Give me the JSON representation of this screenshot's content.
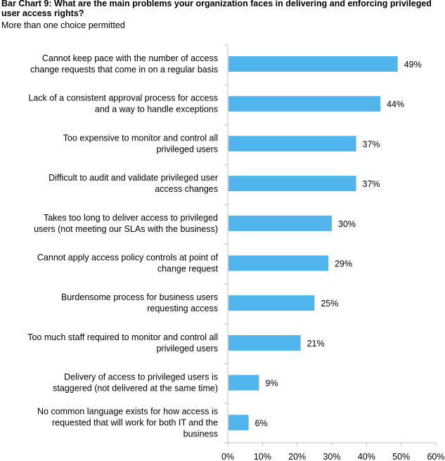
{
  "title": "Bar Chart 9: What are the main problems your organization faces in delivering and enforcing privileged user access rights?",
  "subtitle": "More than one choice permitted",
  "chart_data": {
    "type": "bar",
    "orientation": "horizontal",
    "title": "Bar Chart 9: What are the main problems your organization faces in delivering and enforcing privileged user access rights?",
    "subtitle": "More than one choice permitted",
    "categories": [
      [
        "Cannot keep pace with the number of access",
        "change requests that come in on a regular basis"
      ],
      [
        "Lack of a consistent approval process for access",
        "and a way to handle exceptions"
      ],
      [
        "Too expensive to monitor and control all",
        "privileged users"
      ],
      [
        "Difficult to audit and validate privileged user",
        "access changes"
      ],
      [
        "Takes too long to deliver access to privileged",
        "users (not meeting our SLAs with the business)"
      ],
      [
        "Cannot apply access policy controls at point of",
        "change request"
      ],
      [
        "Burdensome process for business users",
        "requesting access"
      ],
      [
        "Too much staff required to monitor and control all",
        "privileged users"
      ],
      [
        "Delivery of access to privileged users is",
        "staggered (not delivered at the same time)"
      ],
      [
        "No common language exists for how access is",
        "requested that will work for both IT and the",
        "business"
      ]
    ],
    "values": [
      49,
      44,
      37,
      37,
      30,
      29,
      25,
      21,
      9,
      6
    ],
    "value_labels": [
      "49%",
      "44%",
      "37%",
      "37%",
      "30%",
      "29%",
      "25%",
      "21%",
      "9%",
      "6%"
    ],
    "xticks": [
      "0%",
      "10%",
      "20%",
      "30%",
      "40%",
      "50%",
      "60%"
    ],
    "xlim": [
      0,
      60
    ],
    "grid": false,
    "legend": "none",
    "bar_color": "#4fb5ec",
    "axis_color": "#c0c0c0"
  }
}
